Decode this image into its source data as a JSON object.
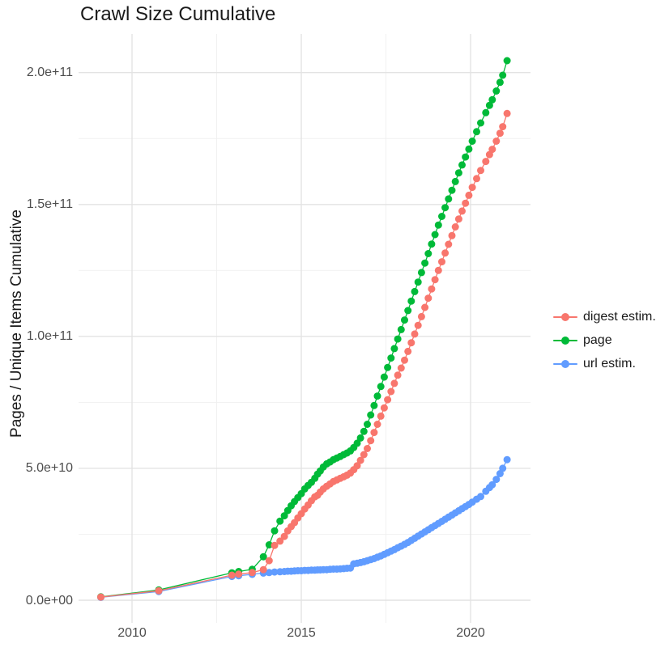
{
  "page": {
    "title": "Crawl Size Cumulative"
  },
  "axes": {
    "y_title": "Pages / Unique Items Cumulative",
    "x_title": ""
  },
  "legend": {
    "items": [
      {
        "label": "digest estim.",
        "color": "#F8766D"
      },
      {
        "label": "page",
        "color": "#00BA38"
      },
      {
        "label": "url estim.",
        "color": "#619CFF"
      }
    ]
  },
  "chart_data": {
    "type": "line",
    "markers": true,
    "title": "Crawl Size Cumulative",
    "xlabel": "",
    "ylabel": "Pages / Unique Items Cumulative",
    "legend_position": "right",
    "grid": {
      "major_color": "#e3e3e3",
      "minor_color": "#f0f0f0",
      "background": "#ffffff"
    },
    "value_unit": "items, values stored in billions (1e9)",
    "xlim": [
      2008.8,
      2021.8
    ],
    "ylim": [
      0,
      215000000000.0
    ],
    "x_tick_values": [
      2010,
      2015,
      2020
    ],
    "x_tick_labels": [
      "2010",
      "2015",
      "2020"
    ],
    "x_minor_years": [
      2012.5,
      2017.5
    ],
    "y_tick_values_billions": [
      0,
      50,
      100,
      150,
      200
    ],
    "y_tick_labels": [
      "0.0e+00",
      "5.0e+10",
      "1.0e+11",
      "1.5e+11",
      "2.0e+11"
    ],
    "y_minor_billions": [
      25,
      75,
      125,
      175
    ],
    "x": [
      2009.08,
      2010.79,
      2012.95,
      2013.15,
      2013.55,
      2013.88,
      2014.05,
      2014.21,
      2014.37,
      2014.5,
      2014.6,
      2014.7,
      2014.8,
      2014.9,
      2015.0,
      2015.1,
      2015.2,
      2015.3,
      2015.4,
      2015.48,
      2015.56,
      2015.65,
      2015.75,
      2015.85,
      2015.95,
      2016.05,
      2016.15,
      2016.25,
      2016.35,
      2016.45,
      2016.55,
      2016.65,
      2016.75,
      2016.85,
      2016.95,
      2017.05,
      2017.15,
      2017.25,
      2017.35,
      2017.45,
      2017.55,
      2017.65,
      2017.75,
      2017.85,
      2017.95,
      2018.05,
      2018.15,
      2018.25,
      2018.35,
      2018.45,
      2018.55,
      2018.65,
      2018.75,
      2018.85,
      2018.95,
      2019.05,
      2019.15,
      2019.25,
      2019.35,
      2019.45,
      2019.55,
      2019.65,
      2019.75,
      2019.85,
      2019.95,
      2020.05,
      2020.18,
      2020.3,
      2020.45,
      2020.56,
      2020.64,
      2020.76,
      2020.87,
      2020.95,
      2021.08
    ],
    "series": [
      {
        "name": "digest estim.",
        "color": "#F8766D",
        "values_billions": [
          1.2,
          3.6,
          9.5,
          9.9,
          10.5,
          11.6,
          15.0,
          20.8,
          22.4,
          24.2,
          26.3,
          27.9,
          29.4,
          31.2,
          32.8,
          34.6,
          36.1,
          37.7,
          39.2,
          39.8,
          41.0,
          42.2,
          43.2,
          44.1,
          45.0,
          45.6,
          46.2,
          46.8,
          47.4,
          48.2,
          49.5,
          51.0,
          53.0,
          55.2,
          57.5,
          60.5,
          63.6,
          66.7,
          69.8,
          72.9,
          76.0,
          79.1,
          82.2,
          85.3,
          88.0,
          91.0,
          94.3,
          97.6,
          100.9,
          104.2,
          107.5,
          111.0,
          114.5,
          118.0,
          121.5,
          125.0,
          128.3,
          131.6,
          134.9,
          138.2,
          141.5,
          144.5,
          147.5,
          150.5,
          153.5,
          156.5,
          159.8,
          162.9,
          166.3,
          168.9,
          170.9,
          174.0,
          177.0,
          179.5,
          184.5
        ]
      },
      {
        "name": "page",
        "color": "#00BA38",
        "values_billions": [
          1.3,
          3.9,
          10.4,
          10.9,
          11.7,
          16.5,
          21.0,
          26.3,
          30.0,
          32.0,
          34.0,
          35.8,
          37.4,
          38.9,
          40.4,
          42.2,
          43.5,
          44.7,
          46.2,
          47.8,
          49.0,
          50.5,
          51.7,
          52.4,
          53.3,
          53.9,
          54.5,
          55.2,
          55.8,
          56.6,
          57.9,
          59.5,
          61.5,
          64.0,
          66.7,
          70.2,
          73.8,
          77.4,
          81.0,
          84.6,
          88.2,
          91.8,
          95.4,
          99.0,
          102.6,
          106.2,
          109.8,
          113.4,
          117.0,
          120.6,
          124.2,
          127.8,
          131.4,
          135.0,
          138.6,
          142.2,
          145.5,
          148.8,
          152.1,
          155.4,
          158.7,
          162.0,
          165.0,
          168.0,
          171.0,
          174.0,
          177.6,
          180.9,
          184.8,
          187.6,
          189.7,
          193.0,
          196.3,
          199.0,
          204.5
        ]
      },
      {
        "name": "url estim.",
        "color": "#619CFF",
        "values_billions": [
          1.1,
          3.3,
          9.0,
          9.3,
          9.8,
          10.3,
          10.5,
          10.7,
          10.8,
          10.9,
          11.0,
          11.0,
          11.1,
          11.2,
          11.2,
          11.3,
          11.3,
          11.4,
          11.4,
          11.5,
          11.5,
          11.6,
          11.6,
          11.7,
          11.8,
          11.8,
          11.9,
          12.0,
          12.1,
          12.2,
          13.8,
          14.0,
          14.3,
          14.6,
          15.0,
          15.4,
          15.8,
          16.3,
          16.8,
          17.4,
          18.0,
          18.6,
          19.2,
          19.9,
          20.5,
          21.2,
          21.9,
          22.7,
          23.5,
          24.3,
          25.1,
          25.9,
          26.7,
          27.5,
          28.3,
          29.1,
          29.9,
          30.7,
          31.5,
          32.3,
          33.1,
          33.9,
          34.7,
          35.5,
          36.3,
          37.2,
          38.3,
          39.3,
          41.3,
          42.7,
          43.8,
          45.8,
          48.0,
          50.0,
          53.3
        ]
      }
    ]
  }
}
